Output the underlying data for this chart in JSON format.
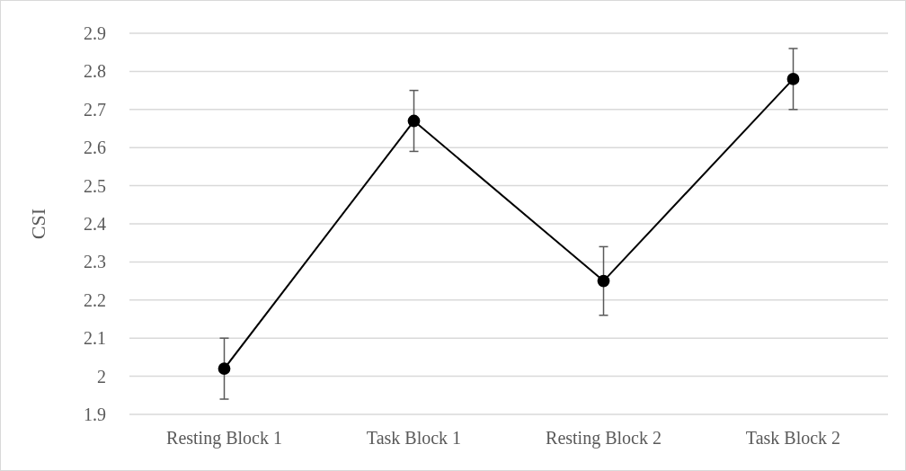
{
  "chart_data": {
    "type": "line",
    "ylabel": "CSI",
    "categories": [
      "Resting Block 1",
      "Task Block 1",
      "Resting Block 2",
      "Task Block 2"
    ],
    "series": [
      {
        "color": "#000000",
        "values": [
          2.02,
          2.67,
          2.25,
          2.78
        ],
        "errors": [
          0.08,
          0.08,
          0.09,
          0.08
        ]
      }
    ],
    "ylim": [
      1.9,
      2.9
    ],
    "yticks": [
      1.9,
      2,
      2.1,
      2.2,
      2.3,
      2.4,
      2.5,
      2.6,
      2.7,
      2.8,
      2.9
    ],
    "grid": "y",
    "marker": "circle",
    "line_style": "solid"
  }
}
